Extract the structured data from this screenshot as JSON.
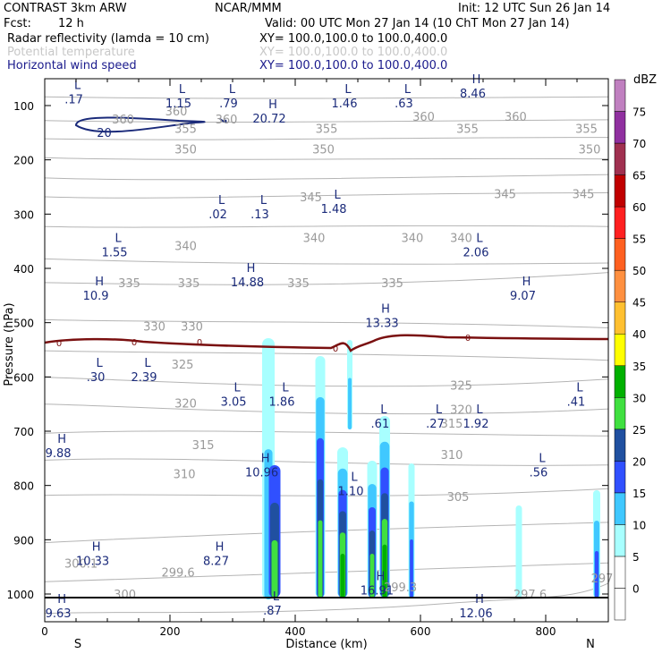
{
  "header": {
    "left1": "CONTRAST  3km ARW",
    "center1": "NCAR/MMM",
    "right1": "Init: 12 UTC Sun 26 Jan 14",
    "fcst_label": "Fcst:",
    "fcst_value": "12 h",
    "valid": "Valid: 00 UTC Mon 27 Jan 14 (10 ChT Mon 27 Jan 14)",
    "fields": [
      {
        "name": "Radar reflectivity (lamda = 10 cm)",
        "xy": "XY=  100.0,100.0 to 100.0,400.0",
        "color": "#000000"
      },
      {
        "name": "Potential temperature",
        "xy": "XY=  100.0,100.0 to 100.0,400.0",
        "color": "#c8c8c8"
      },
      {
        "name": "Horizontal wind speed",
        "xy": "XY=  100.0,100.0 to 100.0,400.0",
        "color": "#1a1a8c"
      }
    ]
  },
  "chart_data": {
    "type": "heatmap",
    "xlabel": "Distance (km)",
    "ylabel": "Pressure (hPa)",
    "xlim": [
      0,
      900
    ],
    "ylim": [
      1000,
      60
    ],
    "x_ticks": [
      0,
      200,
      400,
      600,
      800
    ],
    "y_ticks": [
      100,
      200,
      300,
      400,
      500,
      600,
      700,
      800,
      900,
      1000
    ],
    "end_labels": {
      "left": "S",
      "right": "N"
    },
    "colorbar": {
      "unit": "dBZ",
      "levels": [
        0,
        5,
        10,
        15,
        20,
        25,
        30,
        35,
        40,
        45,
        50,
        55,
        60,
        65,
        70,
        75
      ],
      "colors": [
        "#ffffff",
        "#a8ffff",
        "#40c8ff",
        "#3050ff",
        "#2050a0",
        "#40e040",
        "#00b000",
        "#ffff00",
        "#ffc030",
        "#ff9040",
        "#ff6020",
        "#ff2020",
        "#c00000",
        "#a03050",
        "#9030a0",
        "#c080c0"
      ]
    },
    "theta_labels": [
      {
        "v": "360",
        "x": 210,
        "p": 110
      },
      {
        "v": "360",
        "x": 125,
        "p": 125
      },
      {
        "v": "360",
        "x": 290,
        "p": 125
      },
      {
        "v": "360",
        "x": 605,
        "p": 120
      },
      {
        "v": "360",
        "x": 752,
        "p": 120
      },
      {
        "v": "355",
        "x": 225,
        "p": 142
      },
      {
        "v": "355",
        "x": 450,
        "p": 142
      },
      {
        "v": "355",
        "x": 675,
        "p": 142
      },
      {
        "v": "355",
        "x": 865,
        "p": 142
      },
      {
        "v": "350",
        "x": 225,
        "p": 180
      },
      {
        "v": "350",
        "x": 445,
        "p": 180
      },
      {
        "v": "350",
        "x": 870,
        "p": 180
      },
      {
        "v": "345",
        "x": 425,
        "p": 268
      },
      {
        "v": "345",
        "x": 735,
        "p": 262
      },
      {
        "v": "345",
        "x": 860,
        "p": 262
      },
      {
        "v": "340",
        "x": 225,
        "p": 358
      },
      {
        "v": "340",
        "x": 430,
        "p": 343
      },
      {
        "v": "340",
        "x": 587,
        "p": 343
      },
      {
        "v": "340",
        "x": 665,
        "p": 343
      },
      {
        "v": "335",
        "x": 135,
        "p": 426
      },
      {
        "v": "335",
        "x": 230,
        "p": 426
      },
      {
        "v": "335",
        "x": 405,
        "p": 426
      },
      {
        "v": "335",
        "x": 555,
        "p": 426
      },
      {
        "v": "330",
        "x": 175,
        "p": 506
      },
      {
        "v": "330",
        "x": 235,
        "p": 506
      },
      {
        "v": "325",
        "x": 220,
        "p": 576
      },
      {
        "v": "325",
        "x": 665,
        "p": 615
      },
      {
        "v": "320",
        "x": 225,
        "p": 648
      },
      {
        "v": "320",
        "x": 665,
        "p": 660
      },
      {
        "v": "315",
        "x": 650,
        "p": 685
      },
      {
        "v": "315",
        "x": 253,
        "p": 725
      },
      {
        "v": "310",
        "x": 650,
        "p": 743
      },
      {
        "v": "310",
        "x": 223,
        "p": 778
      },
      {
        "v": "305",
        "x": 660,
        "p": 820
      },
      {
        "v": "300.1",
        "x": 58,
        "p": 943
      },
      {
        "v": "299.6",
        "x": 213,
        "p": 960
      },
      {
        "v": "300",
        "x": 128,
        "p": 1000
      },
      {
        "v": "299.3",
        "x": 568,
        "p": 987
      },
      {
        "v": "297.6",
        "x": 775,
        "p": 1000
      },
      {
        "v": "297",
        "x": 890,
        "p": 970
      }
    ],
    "wind_extrema": [
      {
        "t": "L",
        "x": 38,
        "p": 73,
        "v": ".17"
      },
      {
        "t": "L",
        "x": 205,
        "p": 80,
        "v": "1.15"
      },
      {
        "t": "L",
        "x": 285,
        "p": 80,
        "v": ".79"
      },
      {
        "t": "H",
        "x": 350,
        "p": 108,
        "v": "20.72"
      },
      {
        "t": "L",
        "x": 470,
        "p": 80,
        "v": "1.46"
      },
      {
        "t": "L",
        "x": 565,
        "p": 80,
        "v": ".63"
      },
      {
        "t": "H",
        "x": 675,
        "p": 62,
        "v": "8.46"
      },
      {
        "t": "L",
        "x": 268,
        "p": 285,
        "v": ".02"
      },
      {
        "t": "L",
        "x": 335,
        "p": 285,
        "v": ".13"
      },
      {
        "t": "L",
        "x": 453,
        "p": 275,
        "v": "1.48"
      },
      {
        "t": "L",
        "x": 103,
        "p": 355,
        "v": "1.55"
      },
      {
        "t": "L",
        "x": 680,
        "p": 355,
        "v": "2.06"
      },
      {
        "t": "H",
        "x": 315,
        "p": 410,
        "v": "14.88"
      },
      {
        "t": "H",
        "x": 73,
        "p": 435,
        "v": "10.9"
      },
      {
        "t": "H",
        "x": 755,
        "p": 435,
        "v": "9.07"
      },
      {
        "t": "H",
        "x": 530,
        "p": 485,
        "v": "13.33"
      },
      {
        "t": "L",
        "x": 73,
        "p": 585,
        "v": ".30"
      },
      {
        "t": "L",
        "x": 150,
        "p": 585,
        "v": "2.39"
      },
      {
        "t": "L",
        "x": 293,
        "p": 630,
        "v": "3.05"
      },
      {
        "t": "L",
        "x": 370,
        "p": 630,
        "v": "1.86"
      },
      {
        "t": "L",
        "x": 840,
        "p": 630,
        "v": ".41"
      },
      {
        "t": "L",
        "x": 527,
        "p": 670,
        "v": ".61"
      },
      {
        "t": "L",
        "x": 615,
        "p": 670,
        "v": ".27"
      },
      {
        "t": "L",
        "x": 680,
        "p": 670,
        "v": "1.92"
      },
      {
        "t": "H",
        "x": 13,
        "p": 725,
        "v": "9.88"
      },
      {
        "t": "H",
        "x": 338,
        "p": 760,
        "v": "10.96"
      },
      {
        "t": "L",
        "x": 780,
        "p": 760,
        "v": ".56"
      },
      {
        "t": "L",
        "x": 480,
        "p": 795,
        "v": "1.10"
      },
      {
        "t": "H",
        "x": 68,
        "p": 923,
        "v": "10.33"
      },
      {
        "t": "H",
        "x": 265,
        "p": 923,
        "v": "8.27"
      },
      {
        "t": "H",
        "x": 522,
        "p": 978,
        "v": "16.91"
      },
      {
        "t": "H",
        "x": 13,
        "p": 1020,
        "v": "9.63"
      },
      {
        "t": "L",
        "x": 355,
        "p": 1015,
        "v": ".87"
      },
      {
        "t": "H",
        "x": 680,
        "p": 1020,
        "v": "12.06"
      }
    ],
    "wind_contour_label": {
      "v": "20",
      "x": 95,
      "p": 138
    },
    "zero_dbz_label": "0"
  }
}
